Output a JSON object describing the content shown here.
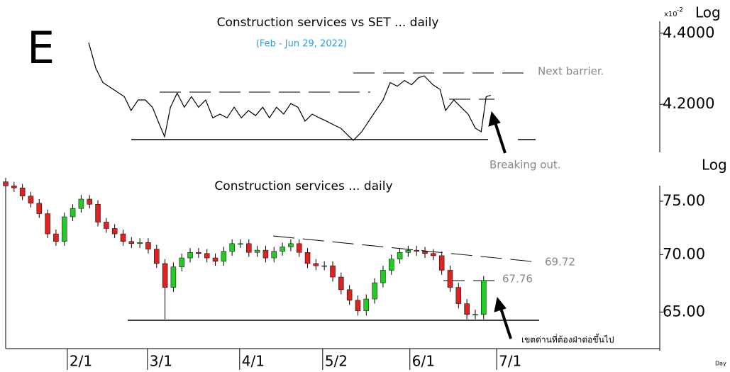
{
  "chart_data": [
    {
      "type": "line",
      "title": "Construction services vs SET ... daily",
      "subtitle": "(Feb - Jun 29, 2022)",
      "letter": "E",
      "scale_prefix": "x10",
      "scale_exponent": "-2",
      "scale_label": "Log",
      "log_scale": true,
      "color": "#000000",
      "x": [
        19.8,
        21.5,
        23.2,
        25.7,
        28.3,
        29.9,
        31.6,
        33.3,
        35.0,
        36.7,
        37.9,
        39.3,
        40.9,
        42.6,
        44.3,
        46.0,
        47.7,
        49.4,
        51.1,
        52.8,
        54.5,
        56.2,
        57.9,
        59.6,
        61.3,
        62.9,
        64.6,
        66.3,
        68.0,
        69.7,
        71.4,
        73.1,
        74.8,
        76.5,
        78.2,
        79.9,
        81.6,
        82.9,
        84.9,
        86.6,
        88.3,
        90.0,
        91.7,
        93.4,
        95.1,
        96.8,
        98.5,
        99.8,
        101.9,
        103.6,
        104.9,
        106.9,
        108.6,
        110.3,
        112.0,
        113.4,
        114.6,
        115.7
      ],
      "values": [
        4.373,
        4.3,
        4.26,
        4.241,
        4.221,
        4.183,
        4.212,
        4.212,
        4.192,
        4.144,
        4.112,
        4.192,
        4.231,
        4.192,
        4.221,
        4.192,
        4.212,
        4.163,
        4.173,
        4.163,
        4.192,
        4.163,
        4.183,
        4.169,
        4.192,
        4.163,
        4.192,
        4.173,
        4.202,
        4.192,
        4.154,
        4.173,
        4.163,
        4.154,
        4.144,
        4.135,
        4.116,
        4.102,
        4.125,
        4.154,
        4.183,
        4.212,
        4.26,
        4.25,
        4.266,
        4.254,
        4.274,
        4.279,
        4.254,
        4.241,
        4.183,
        4.212,
        4.192,
        4.173,
        4.135,
        4.125,
        4.221,
        4.225
      ],
      "xlim": [
        0,
        156
      ],
      "ylim": [
        4.07,
        4.48
      ],
      "yticks": [
        {
          "value": 4.4,
          "label": "4.4000"
        },
        {
          "value": 4.2,
          "label": "4.2000"
        }
      ],
      "annotations": [
        "Next barrier.",
        "Breaking out."
      ]
    },
    {
      "type": "candlestick",
      "title": "Construction services ... daily",
      "scale_label": "Log",
      "log_scale": true,
      "up_color": "#22cc22",
      "down_color": "#dd2222",
      "x": [
        0,
        2,
        4,
        6,
        8,
        10,
        12,
        14,
        16,
        18,
        20,
        22,
        24,
        26,
        28,
        30,
        32,
        34,
        36,
        38,
        40,
        42,
        44,
        46,
        48,
        50,
        52,
        54,
        56,
        58,
        60,
        62,
        64,
        66,
        68,
        70,
        72,
        74,
        76,
        78,
        80,
        82,
        84,
        86,
        88,
        90,
        92,
        94,
        96,
        98,
        100,
        102,
        104,
        106,
        108,
        110,
        112,
        114
      ],
      "open": [
        76.9,
        76.5,
        76.3,
        75.5,
        74.8,
        73.8,
        71.9,
        71.2,
        73.5,
        74.3,
        75.2,
        74.7,
        73.0,
        72.4,
        71.9,
        71.2,
        71.0,
        71.1,
        70.5,
        69.2,
        67.1,
        68.9,
        69.7,
        70.2,
        70.1,
        69.7,
        69.4,
        70.3,
        71.0,
        71.0,
        70.2,
        70.4,
        69.7,
        70.3,
        70.7,
        71.0,
        70.2,
        69.2,
        69.0,
        69.0,
        68.0,
        66.9,
        66.0,
        65.1,
        66.1,
        67.5,
        68.6,
        69.6,
        70.2,
        70.4,
        70.3,
        70.1,
        69.9,
        68.6,
        67.1,
        65.7,
        64.8,
        64.8
      ],
      "high": [
        77.3,
        76.9,
        76.7,
        75.9,
        75.2,
        74.2,
        72.3,
        73.9,
        74.7,
        75.6,
        75.6,
        75.1,
        73.4,
        72.8,
        72.3,
        71.6,
        71.5,
        71.5,
        70.9,
        69.6,
        69.3,
        70.1,
        70.6,
        70.6,
        70.5,
        70.1,
        70.7,
        71.4,
        71.4,
        71.4,
        70.8,
        70.8,
        70.7,
        71.1,
        71.4,
        71.4,
        70.6,
        69.6,
        69.4,
        69.4,
        68.4,
        67.3,
        66.4,
        66.5,
        67.9,
        69.0,
        70.0,
        70.6,
        70.8,
        70.8,
        70.7,
        70.5,
        70.3,
        69.0,
        67.5,
        66.1,
        65.2,
        68.1
      ],
      "low": [
        76.1,
        75.9,
        75.1,
        74.4,
        73.4,
        71.5,
        70.8,
        70.8,
        73.1,
        73.9,
        74.3,
        72.6,
        72.0,
        71.5,
        70.8,
        70.6,
        70.6,
        70.1,
        68.8,
        64.4,
        66.7,
        68.5,
        69.3,
        69.7,
        69.3,
        69.0,
        69.0,
        69.9,
        70.6,
        69.8,
        69.8,
        69.3,
        69.3,
        69.9,
        70.3,
        69.8,
        68.8,
        68.6,
        68.6,
        67.6,
        66.5,
        65.6,
        64.7,
        64.7,
        65.7,
        67.1,
        68.2,
        69.2,
        69.8,
        69.9,
        69.7,
        69.5,
        68.2,
        66.7,
        65.3,
        64.4,
        64.4,
        64.4
      ],
      "close": [
        76.5,
        76.3,
        75.5,
        74.8,
        73.8,
        71.9,
        71.2,
        73.5,
        74.3,
        75.2,
        74.7,
        73.0,
        72.4,
        71.9,
        71.2,
        71.0,
        71.1,
        70.5,
        69.2,
        67.1,
        68.9,
        69.7,
        70.2,
        70.1,
        69.7,
        69.4,
        70.3,
        71.0,
        71.0,
        70.2,
        70.4,
        69.7,
        70.3,
        70.7,
        71.0,
        70.2,
        69.2,
        69.0,
        69.0,
        68.0,
        66.9,
        66.0,
        65.1,
        66.1,
        67.5,
        68.6,
        69.6,
        70.2,
        70.4,
        70.3,
        70.1,
        69.9,
        68.6,
        67.1,
        65.7,
        64.8,
        64.8,
        67.7
      ],
      "xlim": [
        0,
        156
      ],
      "ylim": [
        62,
        76.8
      ],
      "yticks": [
        {
          "value": 75,
          "label": "75.00"
        },
        {
          "value": 70,
          "label": "70.00"
        },
        {
          "value": 65,
          "label": "65.00"
        }
      ],
      "xticks": [
        {
          "value": 14.7,
          "label": "2/1"
        },
        {
          "value": 33.8,
          "label": "3/1"
        },
        {
          "value": 55.8,
          "label": "4/1"
        },
        {
          "value": 75.6,
          "label": "5/2"
        },
        {
          "value": 96.4,
          "label": "6/1"
        },
        {
          "value": 117.1,
          "label": "7/1"
        }
      ],
      "level_labels": [
        69.72,
        67.76
      ],
      "annotation": "เขตด่านที่ต้องฝ่าต่อขึ้นไป",
      "x_axis_label": "Day"
    }
  ]
}
